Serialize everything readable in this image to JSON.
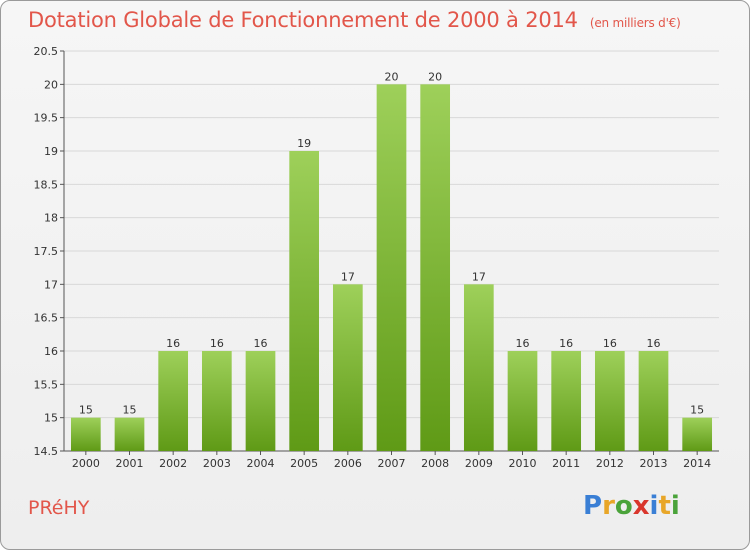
{
  "title": "Dotation Globale de Fonctionnement de 2000 à 2014",
  "unit_label": "(en milliers d'€)",
  "commune": "PRéHY",
  "brand": {
    "text": "Proxiti",
    "letters": [
      {
        "ch": "P",
        "color": "#3a7fd5"
      },
      {
        "ch": "r",
        "color": "#e8a628"
      },
      {
        "ch": "o",
        "color": "#4aa33a"
      },
      {
        "ch": "x",
        "color": "#d9362c"
      },
      {
        "ch": "i",
        "color": "#3a7fd5"
      },
      {
        "ch": "t",
        "color": "#e8a628"
      },
      {
        "ch": "i",
        "color": "#4aa33a"
      }
    ]
  },
  "colors": {
    "accent": "#e2564a",
    "bar_top": "#9ed05a",
    "bar_bottom": "#5f9a16",
    "grid": "#d8d8d8",
    "axis": "#555555"
  },
  "chart_data": {
    "type": "bar",
    "title": "Dotation Globale de Fonctionnement de 2000 à 2014",
    "xlabel": "",
    "ylabel": "",
    "categories": [
      "2000",
      "2001",
      "2002",
      "2003",
      "2004",
      "2005",
      "2006",
      "2007",
      "2008",
      "2009",
      "2010",
      "2011",
      "2012",
      "2013",
      "2014"
    ],
    "values": [
      15,
      15,
      16,
      16,
      16,
      19,
      17,
      20,
      20,
      17,
      16,
      16,
      16,
      16,
      15
    ],
    "labels": [
      "15",
      "15",
      "16",
      "16",
      "16",
      "19",
      "17",
      "20",
      "20",
      "17",
      "16",
      "16",
      "16",
      "16",
      "15"
    ],
    "ylim": [
      14.5,
      20.5
    ],
    "yticks": [
      "14.5",
      "15",
      "15.5",
      "16",
      "16.5",
      "17",
      "17.5",
      "18",
      "18.5",
      "19",
      "19.5",
      "20",
      "20.5"
    ],
    "grid": true
  }
}
